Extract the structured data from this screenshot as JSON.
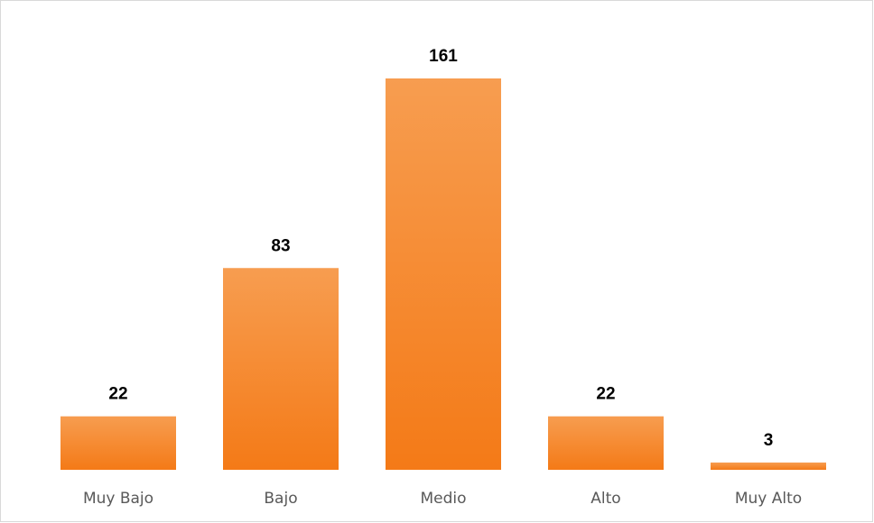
{
  "chart_data": {
    "type": "bar",
    "categories": [
      "Muy Bajo",
      "Bajo",
      "Medio",
      "Alto",
      "Muy Alto"
    ],
    "values": [
      22,
      83,
      161,
      22,
      3
    ],
    "color": "#f5822a"
  }
}
